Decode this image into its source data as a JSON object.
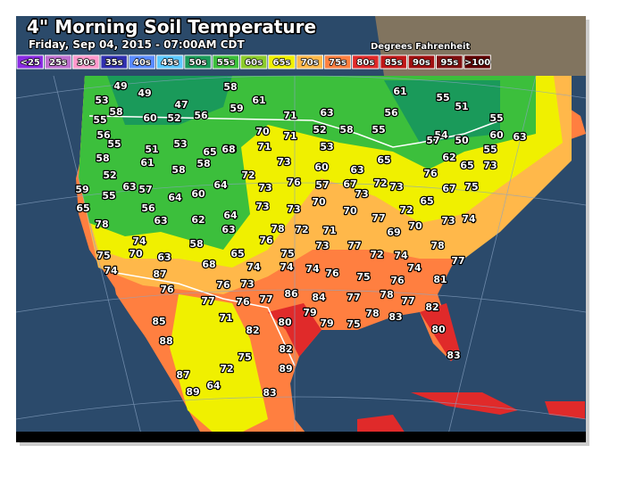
{
  "header": {
    "title": "4\" Morning Soil Temperature",
    "subtitle": "Friday, Sep 04, 2015 - 07:00AM CDT",
    "units": "Degrees Fahrenheit"
  },
  "legend": [
    {
      "label": "<25",
      "color": "#8a2be2"
    },
    {
      "label": "25s",
      "color": "#c070d0"
    },
    {
      "label": "30s",
      "color": "#ff99cc"
    },
    {
      "label": "35s",
      "color": "#3030b0"
    },
    {
      "label": "40s",
      "color": "#5a8cff"
    },
    {
      "label": "45s",
      "color": "#5cc8ff"
    },
    {
      "label": "50s",
      "color": "#1a9a5a"
    },
    {
      "label": "55s",
      "color": "#3cbf3c"
    },
    {
      "label": "60s",
      "color": "#8ccc2c"
    },
    {
      "label": "65s",
      "color": "#f0f000"
    },
    {
      "label": "70s",
      "color": "#ffb84a"
    },
    {
      "label": "75s",
      "color": "#ff8040"
    },
    {
      "label": "80s",
      "color": "#e02a2a"
    },
    {
      "label": "85s",
      "color": "#c01818"
    },
    {
      "label": "90s",
      "color": "#a01010"
    },
    {
      "label": "95s",
      "color": "#801010"
    },
    {
      "label": ">100",
      "color": "#600000"
    }
  ],
  "stations": [
    49,
    49,
    58,
    61,
    55,
    51,
    59,
    61,
    47,
    56,
    71,
    63,
    56,
    55,
    53,
    58,
    55,
    60,
    52,
    56,
    55,
    58,
    51,
    53,
    65,
    58,
    70,
    71,
    52,
    58,
    55,
    54,
    57,
    50,
    60,
    63,
    68,
    71,
    53,
    65,
    62,
    55,
    52,
    61,
    58,
    58,
    73,
    60,
    63,
    65,
    73,
    59,
    55,
    63,
    57,
    64,
    60,
    64,
    72,
    73,
    76,
    57,
    67,
    72,
    73,
    73,
    76,
    67,
    75,
    65,
    56,
    63,
    62,
    64,
    73,
    73,
    70,
    70,
    77,
    72,
    65,
    73,
    74,
    78,
    74,
    58,
    63,
    76,
    78,
    72,
    71,
    73,
    77,
    69,
    70,
    78,
    75,
    70,
    63,
    68,
    65,
    74,
    75,
    72,
    74,
    77,
    74,
    87,
    74,
    74,
    76,
    75,
    74,
    76,
    81,
    76,
    76,
    73,
    77,
    86,
    84,
    77,
    78,
    77,
    77,
    76,
    80,
    79,
    79,
    75,
    78,
    83,
    82,
    85,
    71,
    82,
    80,
    88,
    82,
    75,
    83,
    89,
    87,
    72,
    89,
    64,
    83
  ]
}
